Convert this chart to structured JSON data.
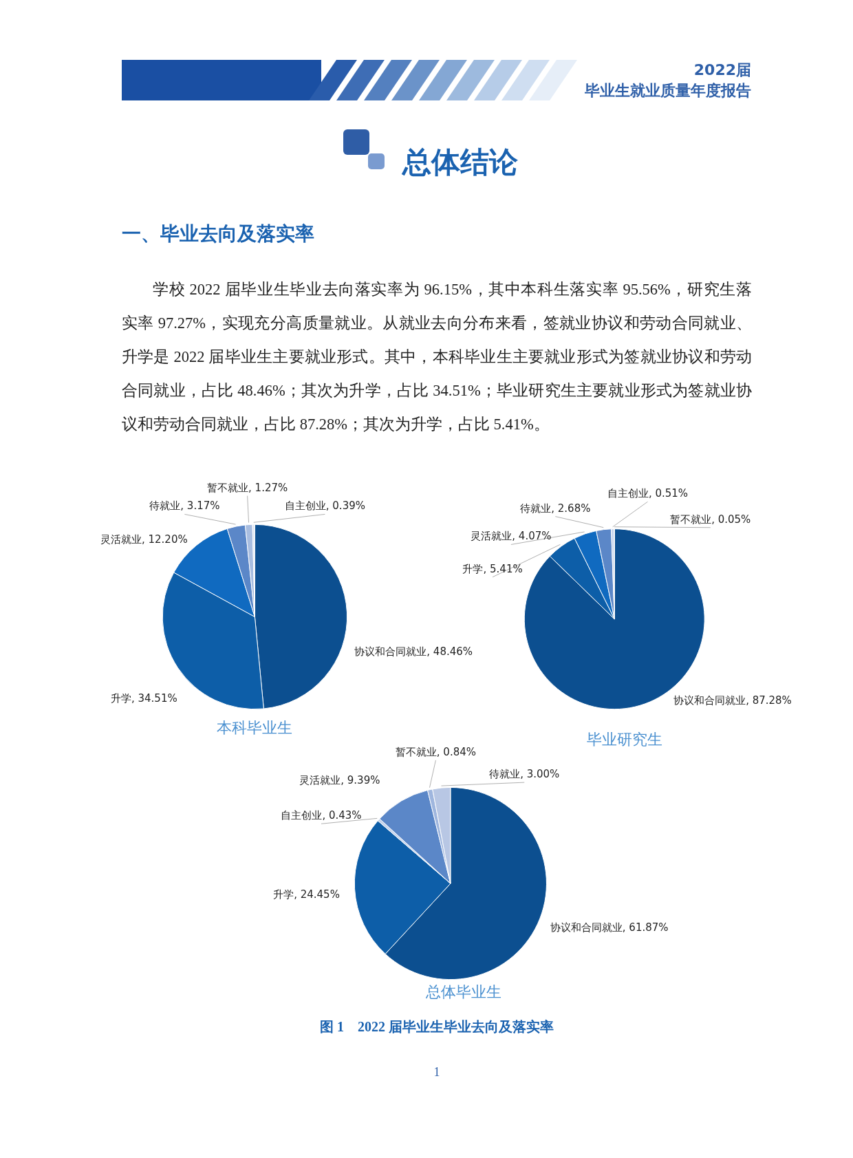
{
  "chart_data": [
    {
      "type": "pie",
      "title": "本科毕业生",
      "categories": [
        "协议和合同就业",
        "升学",
        "灵活就业",
        "待就业",
        "暂不就业",
        "自主创业"
      ],
      "values": [
        48.46,
        34.51,
        12.2,
        3.17,
        1.27,
        0.39
      ],
      "value_labels": [
        "48.46%",
        "34.51%",
        "12.20%",
        "3.17%",
        "1.27%",
        "0.39%"
      ],
      "colors": [
        "#0c4f90",
        "#0d5ea8",
        "#106ac0",
        "#5b87c8",
        "#a8bde0",
        "#dfe6f3"
      ],
      "annotations": [
        "2022届",
        "毕业生就业质量年度报告",
        "总体结论",
        "一、毕业去向及落实率",
        "学校 2022 届毕业生毕业去向落实率为 96.15%，其中本科生落实率 95.56%，研究生落实率 97.27%，实现充分高质量就业。从就业去向分布来看，签就业协议和劳动合同就业、升学是 2022 届毕业生主要就业形式。其中，本科毕业生主要就业形式为签就业协议和劳动合同就业，占比 48.46%；其次为升学，占比 34.51%；毕业研究生主要就业形式为签就业协议和劳动合同就业，占比 87.28%；其次为升学，占比 5.41%。"
      ]
    },
    {
      "type": "pie",
      "title": "毕业研究生",
      "categories": [
        "协议和合同就业",
        "升学",
        "灵活就业",
        "待就业",
        "自主创业",
        "暂不就业"
      ],
      "values": [
        87.28,
        5.41,
        4.07,
        2.68,
        0.51,
        0.05
      ],
      "value_labels": [
        "87.28%",
        "5.41%",
        "4.07%",
        "2.68%",
        "0.51%",
        "0.05%"
      ],
      "colors": [
        "#0c4f90",
        "#0d5ea8",
        "#106ac0",
        "#5b87c8",
        "#c5d3ec",
        "#e3e9f5"
      ]
    },
    {
      "type": "pie",
      "title": "总体毕业生",
      "categories": [
        "协议和合同就业",
        "升学",
        "自主创业",
        "灵活就业",
        "暂不就业",
        "待就业"
      ],
      "values": [
        61.87,
        24.45,
        0.43,
        9.39,
        0.84,
        3.0
      ],
      "value_labels": [
        "61.87%",
        "24.45%",
        "0.43%",
        "9.39%",
        "0.84%",
        "3.00%"
      ],
      "colors": [
        "#0c4f90",
        "#0d5ea8",
        "#c5d3ec",
        "#5b87c8",
        "#9fb6de",
        "#b8c7e4"
      ],
      "annotations": [
        "图 1　2022 届毕业生毕业去向及落实率",
        "1"
      ]
    }
  ]
}
